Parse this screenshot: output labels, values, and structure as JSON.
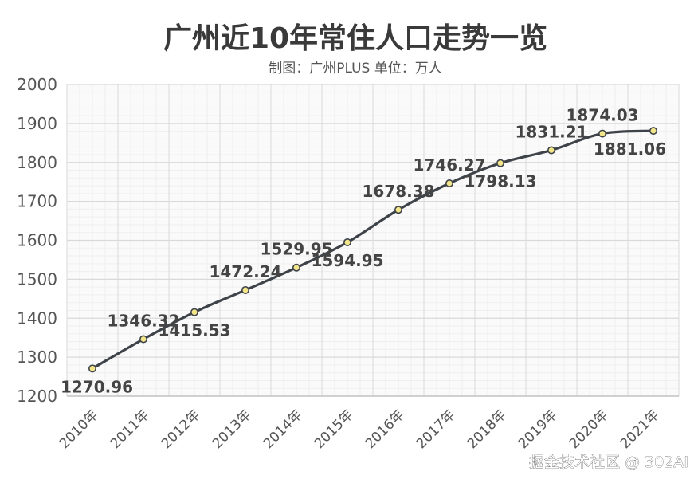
{
  "chart_data": {
    "type": "line",
    "title": "广州近10年常住人口走势一览",
    "subtitle": "制图：广州PLUS  单位：万人",
    "categories": [
      "2010年",
      "2011年",
      "2012年",
      "2013年",
      "2014年",
      "2015年",
      "2016年",
      "2017年",
      "2018年",
      "2019年",
      "2020年",
      "2021年"
    ],
    "series": [
      {
        "values": [
          1270.96,
          1346.32,
          1415.53,
          1472.24,
          1529.95,
          1594.95,
          1678.38,
          1746.27,
          1798.13,
          1831.21,
          1874.03,
          1881.06
        ]
      }
    ],
    "data_labels": [
      "1270.96",
      "1346.32",
      "1415.53",
      "1472.24",
      "1529.95",
      "1594.95",
      "1678.38",
      "1746.27",
      "1798.13",
      "1831.21",
      "1874.03",
      "1881.06"
    ],
    "label_positions": [
      "below",
      "above",
      "below",
      "above",
      "above",
      "below",
      "above",
      "above",
      "below",
      "above",
      "above",
      "below"
    ],
    "y_ticks": [
      "1200",
      "1300",
      "1400",
      "1500",
      "1600",
      "1700",
      "1800",
      "1900",
      "2000"
    ],
    "ylim": [
      1200,
      2000
    ],
    "xlabel": "",
    "ylabel": "",
    "grid": true,
    "legend": "none"
  },
  "watermark": "掘金技术社区 @ 302AI",
  "colors": {
    "line": "#3e4349",
    "marker_fill": "#f2e58a",
    "marker_stroke": "#3e4349",
    "title": "#3a3a3a",
    "subtitle": "#555555",
    "tick": "#555555",
    "label": "#444444",
    "grid_major": "#d9d9d9",
    "grid_minor": "#efefef",
    "plot_bg": "#fafafa"
  }
}
